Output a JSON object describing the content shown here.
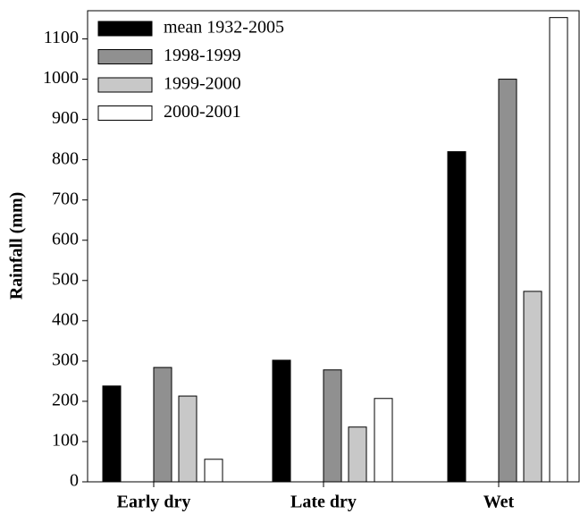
{
  "chart_data": {
    "type": "bar",
    "ylabel": "Rainfall (mm)",
    "categories": [
      "Early dry",
      "Late dry",
      "Wet"
    ],
    "series": [
      {
        "name": "mean 1932-2005",
        "color": "#000000",
        "values": [
          238,
          302,
          820
        ]
      },
      {
        "name": "1998-1999",
        "color": "#909090",
        "values": [
          284,
          278,
          1000
        ]
      },
      {
        "name": "1999-2000",
        "color": "#c8c8c8",
        "values": [
          213,
          136,
          473
        ]
      },
      {
        "name": "2000-2001",
        "color": "#ffffff",
        "values": [
          56,
          207,
          1153
        ]
      }
    ],
    "ylim": [
      0,
      1170
    ],
    "yticks": [
      0,
      100,
      200,
      300,
      400,
      500,
      600,
      700,
      800,
      900,
      1000,
      1100
    ],
    "legend": "top-left"
  }
}
